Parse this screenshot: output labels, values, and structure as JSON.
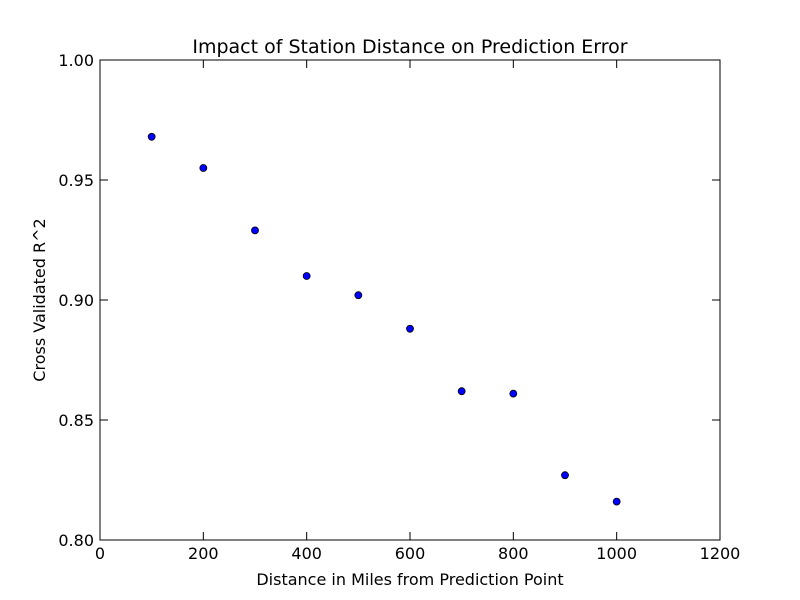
{
  "chart_data": {
    "type": "scatter",
    "title": "Impact of Station Distance on Prediction Error",
    "xlabel": "Distance in Miles from Prediction Point",
    "ylabel": "Cross Validated R^2",
    "xlim": [
      0,
      1200
    ],
    "ylim": [
      0.8,
      1.0
    ],
    "xticks": [
      "0",
      "200",
      "400",
      "600",
      "800",
      "1000",
      "1200"
    ],
    "yticks": [
      "0.80",
      "0.85",
      "0.90",
      "0.95",
      "1.00"
    ],
    "grid": false,
    "legend": "none",
    "marker_color": "#0000ff",
    "series": [
      {
        "x": [
          100,
          200,
          300,
          400,
          500,
          600,
          700,
          800,
          900,
          1000
        ],
        "y": [
          0.968,
          0.955,
          0.929,
          0.91,
          0.902,
          0.888,
          0.862,
          0.861,
          0.827,
          0.816
        ]
      }
    ]
  }
}
